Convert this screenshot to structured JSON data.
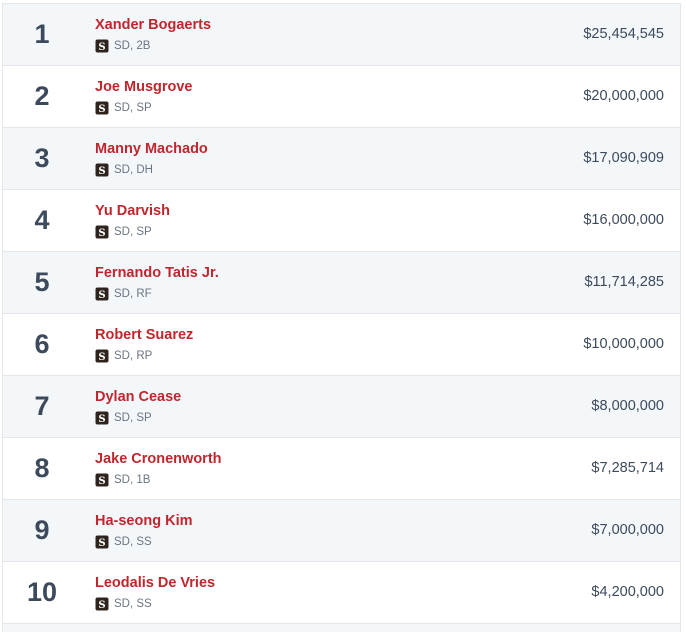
{
  "team_logo_icon": "padres-sd-logo-icon",
  "colors": {
    "name_link": "#c0262d",
    "rank_text": "#3c4a5c",
    "row_alt_bg": "#f4f7fa"
  },
  "players": [
    {
      "rank": "1",
      "name": "Xander Bogaerts",
      "meta": "SD, 2B",
      "salary": "$25,454,545"
    },
    {
      "rank": "2",
      "name": "Joe Musgrove",
      "meta": "SD, SP",
      "salary": "$20,000,000"
    },
    {
      "rank": "3",
      "name": "Manny Machado",
      "meta": "SD, DH",
      "salary": "$17,090,909"
    },
    {
      "rank": "4",
      "name": "Yu Darvish",
      "meta": "SD, SP",
      "salary": "$16,000,000"
    },
    {
      "rank": "5",
      "name": "Fernando Tatis Jr.",
      "meta": "SD, RF",
      "salary": "$11,714,285"
    },
    {
      "rank": "6",
      "name": "Robert Suarez",
      "meta": "SD, RP",
      "salary": "$10,000,000"
    },
    {
      "rank": "7",
      "name": "Dylan Cease",
      "meta": "SD, SP",
      "salary": "$8,000,000"
    },
    {
      "rank": "8",
      "name": "Jake Cronenworth",
      "meta": "SD, 1B",
      "salary": "$7,285,714"
    },
    {
      "rank": "9",
      "name": "Ha-seong Kim",
      "meta": "SD, SS",
      "salary": "$7,000,000"
    },
    {
      "rank": "10",
      "name": "Leodalis De Vries",
      "meta": "SD, SS",
      "salary": "$4,200,000"
    }
  ]
}
